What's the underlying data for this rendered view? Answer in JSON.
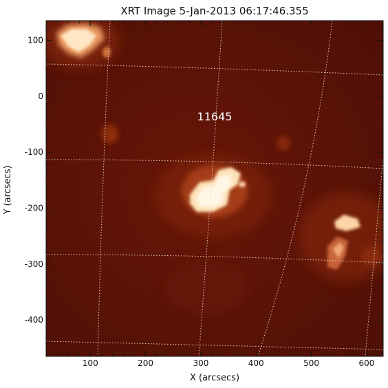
{
  "title": "XRT Image  5-Jan-2013 06:17:46.355",
  "xlabel": "X (arcsecs)",
  "ylabel": "Y (arcsecs)",
  "annotation": "11645",
  "x_ticks": [
    100,
    200,
    300,
    400,
    500,
    600
  ],
  "y_ticks": [
    100,
    0,
    -100,
    -200,
    -300,
    -400
  ],
  "xlim": [
    20,
    630
  ],
  "ylim": [
    -465,
    135
  ],
  "colors": {
    "background": "#5c1206",
    "hot": "#fff0d0",
    "grid": "#e6d2c8",
    "frame": "#111111"
  }
}
